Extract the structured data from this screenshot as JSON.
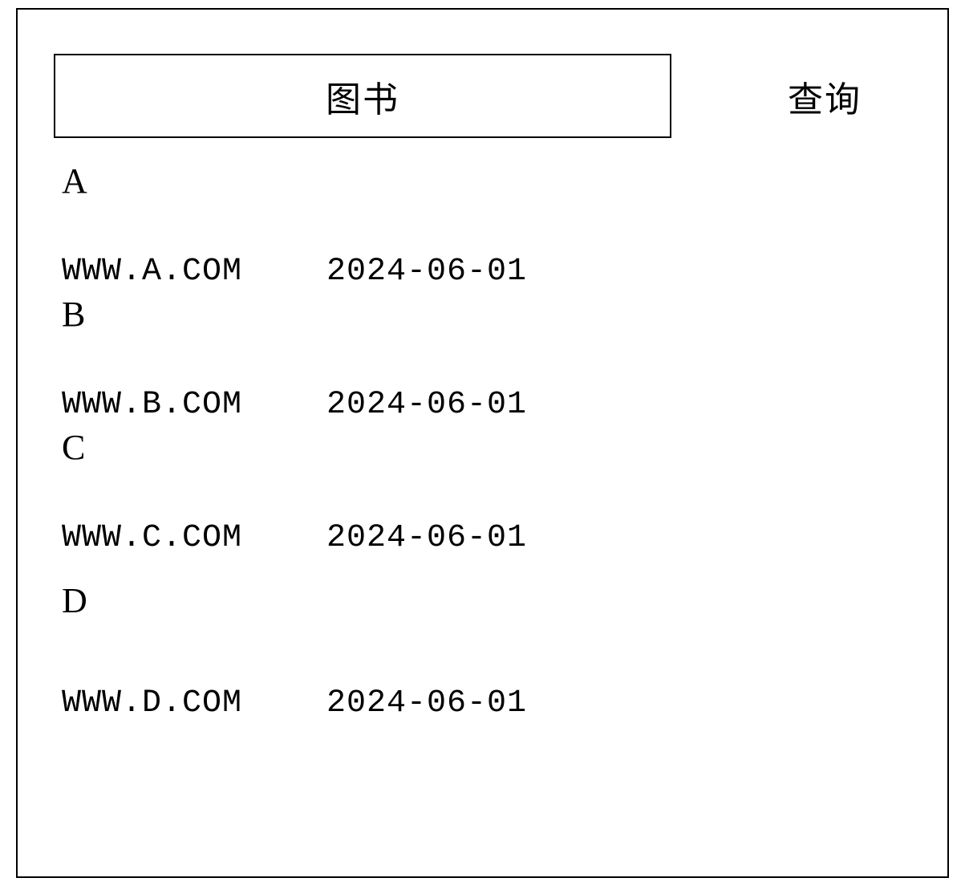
{
  "search": {
    "value": "图书",
    "button_label": "查询"
  },
  "results": [
    {
      "title": "A",
      "url": "WWW.A.COM",
      "date": "2024-06-01"
    },
    {
      "title": "B",
      "url": "WWW.B.COM",
      "date": "2024-06-01"
    },
    {
      "title": "C",
      "url": "WWW.C.COM",
      "date": "2024-06-01"
    },
    {
      "title": "D",
      "url": "WWW.D.COM",
      "date": "2024-06-01"
    }
  ],
  "styling": {
    "border_color": "#000000",
    "background_color": "#ffffff",
    "text_color": "#000000",
    "title_fontsize": 44,
    "meta_fontsize": 40
  }
}
